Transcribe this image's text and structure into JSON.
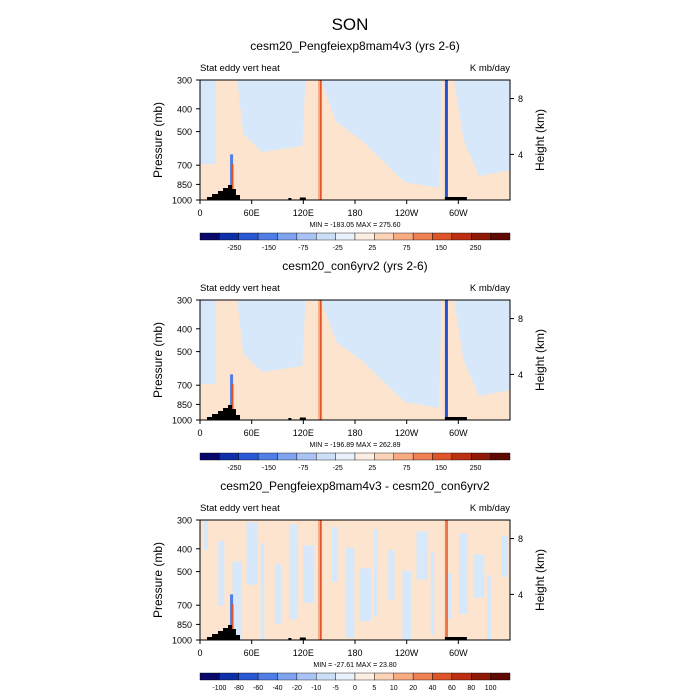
{
  "page_title": "SON",
  "chart_data": [
    {
      "type": "heatmap",
      "title": "cesm20_Pengfeiexp8mam4v3 (yrs 2-6)",
      "left_subtitle": "Stat eddy vert heat",
      "right_subtitle": "K mb/day",
      "ylabel": "Pressure (mb)",
      "ylabel_right": "Height (km)",
      "yticks": [
        "300",
        "400",
        "500",
        "700",
        "850",
        "1000"
      ],
      "yticks_right": [
        "8",
        "4"
      ],
      "xticks": [
        "0",
        "60E",
        "120E",
        "180",
        "120W",
        "60W"
      ],
      "minmax": "MIN = -183.05   MAX = 275.60",
      "colorbar_labels": [
        "-250",
        "-150",
        "-75",
        "-25",
        "25",
        "75",
        "150",
        "250"
      ]
    },
    {
      "type": "heatmap",
      "title": "cesm20_con6yrv2 (yrs 2-6)",
      "left_subtitle": "Stat eddy vert heat",
      "right_subtitle": "K mb/day",
      "ylabel": "Pressure (mb)",
      "ylabel_right": "Height (km)",
      "yticks": [
        "300",
        "400",
        "500",
        "700",
        "850",
        "1000"
      ],
      "yticks_right": [
        "8",
        "4"
      ],
      "xticks": [
        "0",
        "60E",
        "120E",
        "180",
        "120W",
        "60W"
      ],
      "minmax": "MIN = -196.89   MAX = 262.89",
      "colorbar_labels": [
        "-250",
        "-150",
        "-75",
        "-25",
        "25",
        "75",
        "150",
        "250"
      ]
    },
    {
      "type": "heatmap",
      "title": "cesm20_Pengfeiexp8mam4v3 - cesm20_con6yrv2",
      "left_subtitle": "Stat eddy vert heat",
      "right_subtitle": "K mb/day",
      "ylabel": "Pressure (mb)",
      "ylabel_right": "Height (km)",
      "yticks": [
        "300",
        "400",
        "500",
        "700",
        "850",
        "1000"
      ],
      "yticks_right": [
        "8",
        "4"
      ],
      "xticks": [
        "0",
        "60E",
        "120E",
        "180",
        "120W",
        "60W"
      ],
      "minmax": "MIN = -27.61   MAX = 23.80",
      "colorbar_labels": [
        "-100",
        "-80",
        "-60",
        "-40",
        "-20",
        "-10",
        "-5",
        "0",
        "5",
        "10",
        "20",
        "40",
        "60",
        "80",
        "100"
      ]
    }
  ],
  "colors": {
    "light_blue": "#d6e8fa",
    "light_peach": "#fde4cf",
    "terrain": "#000000",
    "colorbar": [
      "#08086b",
      "#0f2fa8",
      "#2a58d4",
      "#4f7fe6",
      "#7ea4ef",
      "#a8c3f4",
      "#cddff8",
      "#e9f1fb",
      "#fdeee3",
      "#fbd3b8",
      "#f6ab83",
      "#ee8052",
      "#dd5528",
      "#bd2f12",
      "#8f1806",
      "#5e0a02"
    ]
  }
}
